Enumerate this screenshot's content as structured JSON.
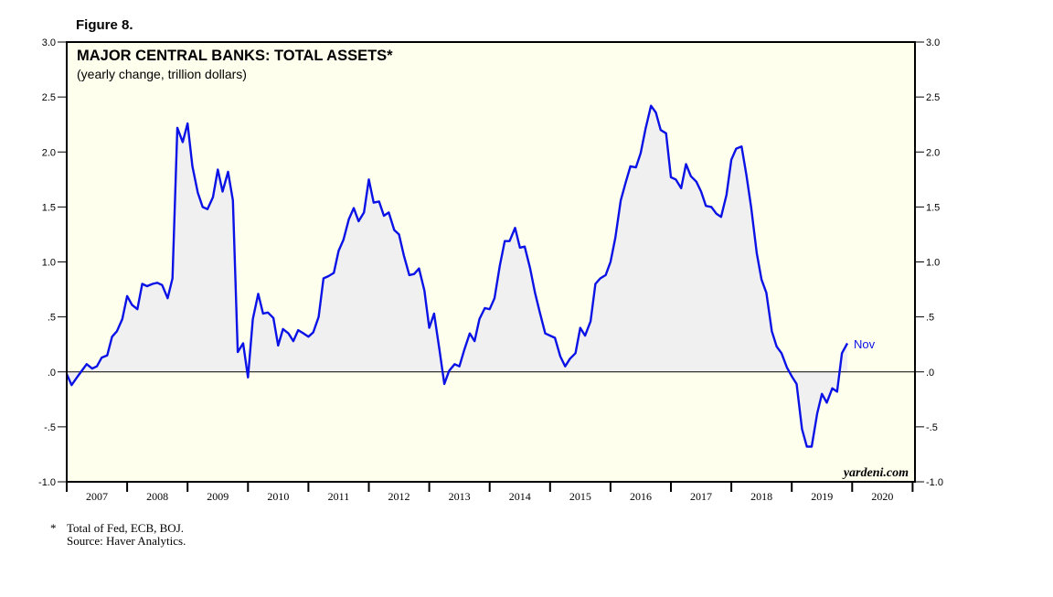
{
  "figure_label": "Figure 8.",
  "chart_data": {
    "type": "area",
    "title": "MAJOR CENTRAL BANKS: TOTAL ASSETS*",
    "subtitle": "(yearly change, trillion dollars)",
    "xlabel": "",
    "ylabel": "",
    "ylim": [
      -1.0,
      3.0
    ],
    "yticks": [
      -1.0,
      -0.5,
      0.0,
      0.5,
      1.0,
      1.5,
      2.0,
      2.5,
      3.0
    ],
    "ytick_labels_left": [
      "-1.0",
      "-.5",
      ".0",
      ".5",
      "1.0",
      "1.5",
      "2.0",
      "2.5",
      "3.0"
    ],
    "ytick_labels_right": [
      "-1.0",
      "-.5",
      ".0",
      ".5",
      "1.0",
      "1.5",
      "2.0",
      "2.5",
      "3.0"
    ],
    "xlim": [
      2007.0,
      2021.0
    ],
    "categories": [
      "2007",
      "2008",
      "2009",
      "2010",
      "2011",
      "2012",
      "2013",
      "2014",
      "2015",
      "2016",
      "2017",
      "2018",
      "2019",
      "2020"
    ],
    "grid": false,
    "zero_line": true,
    "background_color": "#ffffee",
    "series": [
      {
        "color": "#0a12e6",
        "fill": "#f0f0f0",
        "end_label": "Nov",
        "points": [
          [
            2007.0,
            -0.02
          ],
          [
            2007.08,
            -0.12
          ],
          [
            2007.17,
            -0.05
          ],
          [
            2007.25,
            0.01
          ],
          [
            2007.33,
            0.07
          ],
          [
            2007.42,
            0.03
          ],
          [
            2007.5,
            0.05
          ],
          [
            2007.58,
            0.13
          ],
          [
            2007.67,
            0.15
          ],
          [
            2007.75,
            0.32
          ],
          [
            2007.83,
            0.37
          ],
          [
            2007.92,
            0.48
          ],
          [
            2008.0,
            0.69
          ],
          [
            2008.08,
            0.61
          ],
          [
            2008.17,
            0.57
          ],
          [
            2008.25,
            0.8
          ],
          [
            2008.33,
            0.78
          ],
          [
            2008.42,
            0.8
          ],
          [
            2008.5,
            0.81
          ],
          [
            2008.58,
            0.79
          ],
          [
            2008.67,
            0.67
          ],
          [
            2008.75,
            0.85
          ],
          [
            2008.83,
            2.22
          ],
          [
            2008.92,
            2.09
          ],
          [
            2009.0,
            2.26
          ],
          [
            2009.08,
            1.87
          ],
          [
            2009.17,
            1.63
          ],
          [
            2009.25,
            1.5
          ],
          [
            2009.33,
            1.48
          ],
          [
            2009.42,
            1.59
          ],
          [
            2009.5,
            1.84
          ],
          [
            2009.58,
            1.64
          ],
          [
            2009.67,
            1.82
          ],
          [
            2009.75,
            1.56
          ],
          [
            2009.83,
            0.18
          ],
          [
            2009.92,
            0.26
          ],
          [
            2010.0,
            -0.05
          ],
          [
            2010.08,
            0.48
          ],
          [
            2010.17,
            0.71
          ],
          [
            2010.25,
            0.53
          ],
          [
            2010.33,
            0.54
          ],
          [
            2010.42,
            0.49
          ],
          [
            2010.5,
            0.24
          ],
          [
            2010.58,
            0.39
          ],
          [
            2010.67,
            0.35
          ],
          [
            2010.75,
            0.28
          ],
          [
            2010.83,
            0.38
          ],
          [
            2010.92,
            0.35
          ],
          [
            2011.0,
            0.32
          ],
          [
            2011.08,
            0.36
          ],
          [
            2011.17,
            0.5
          ],
          [
            2011.25,
            0.85
          ],
          [
            2011.33,
            0.87
          ],
          [
            2011.42,
            0.9
          ],
          [
            2011.5,
            1.1
          ],
          [
            2011.58,
            1.2
          ],
          [
            2011.67,
            1.39
          ],
          [
            2011.75,
            1.49
          ],
          [
            2011.83,
            1.37
          ],
          [
            2011.92,
            1.45
          ],
          [
            2012.0,
            1.75
          ],
          [
            2012.08,
            1.54
          ],
          [
            2012.17,
            1.55
          ],
          [
            2012.25,
            1.42
          ],
          [
            2012.33,
            1.45
          ],
          [
            2012.42,
            1.29
          ],
          [
            2012.5,
            1.25
          ],
          [
            2012.58,
            1.06
          ],
          [
            2012.67,
            0.88
          ],
          [
            2012.75,
            0.89
          ],
          [
            2012.83,
            0.94
          ],
          [
            2012.92,
            0.74
          ],
          [
            2013.0,
            0.4
          ],
          [
            2013.08,
            0.53
          ],
          [
            2013.17,
            0.2
          ],
          [
            2013.25,
            -0.11
          ],
          [
            2013.33,
            0.01
          ],
          [
            2013.42,
            0.07
          ],
          [
            2013.5,
            0.05
          ],
          [
            2013.58,
            0.2
          ],
          [
            2013.67,
            0.35
          ],
          [
            2013.75,
            0.28
          ],
          [
            2013.83,
            0.48
          ],
          [
            2013.92,
            0.58
          ],
          [
            2014.0,
            0.57
          ],
          [
            2014.08,
            0.67
          ],
          [
            2014.17,
            0.97
          ],
          [
            2014.25,
            1.19
          ],
          [
            2014.33,
            1.19
          ],
          [
            2014.42,
            1.31
          ],
          [
            2014.5,
            1.13
          ],
          [
            2014.58,
            1.14
          ],
          [
            2014.67,
            0.94
          ],
          [
            2014.75,
            0.72
          ],
          [
            2014.83,
            0.54
          ],
          [
            2014.92,
            0.35
          ],
          [
            2015.0,
            0.33
          ],
          [
            2015.08,
            0.31
          ],
          [
            2015.17,
            0.14
          ],
          [
            2015.25,
            0.05
          ],
          [
            2015.33,
            0.12
          ],
          [
            2015.42,
            0.17
          ],
          [
            2015.5,
            0.4
          ],
          [
            2015.58,
            0.33
          ],
          [
            2015.67,
            0.46
          ],
          [
            2015.75,
            0.8
          ],
          [
            2015.83,
            0.85
          ],
          [
            2015.92,
            0.88
          ],
          [
            2016.0,
            1.0
          ],
          [
            2016.08,
            1.22
          ],
          [
            2016.17,
            1.56
          ],
          [
            2016.25,
            1.72
          ],
          [
            2016.33,
            1.87
          ],
          [
            2016.42,
            1.86
          ],
          [
            2016.5,
            1.99
          ],
          [
            2016.58,
            2.21
          ],
          [
            2016.67,
            2.42
          ],
          [
            2016.75,
            2.36
          ],
          [
            2016.83,
            2.2
          ],
          [
            2016.92,
            2.17
          ],
          [
            2017.0,
            1.77
          ],
          [
            2017.08,
            1.75
          ],
          [
            2017.17,
            1.67
          ],
          [
            2017.25,
            1.89
          ],
          [
            2017.33,
            1.78
          ],
          [
            2017.42,
            1.73
          ],
          [
            2017.5,
            1.64
          ],
          [
            2017.58,
            1.51
          ],
          [
            2017.67,
            1.5
          ],
          [
            2017.75,
            1.44
          ],
          [
            2017.83,
            1.41
          ],
          [
            2017.92,
            1.61
          ],
          [
            2018.0,
            1.93
          ],
          [
            2018.08,
            2.03
          ],
          [
            2018.17,
            2.05
          ],
          [
            2018.25,
            1.79
          ],
          [
            2018.33,
            1.49
          ],
          [
            2018.42,
            1.08
          ],
          [
            2018.5,
            0.84
          ],
          [
            2018.58,
            0.72
          ],
          [
            2018.67,
            0.37
          ],
          [
            2018.75,
            0.23
          ],
          [
            2018.83,
            0.17
          ],
          [
            2018.92,
            0.04
          ],
          [
            2019.0,
            -0.04
          ],
          [
            2019.08,
            -0.11
          ],
          [
            2019.17,
            -0.52
          ],
          [
            2019.25,
            -0.68
          ],
          [
            2019.33,
            -0.68
          ],
          [
            2019.42,
            -0.38
          ],
          [
            2019.5,
            -0.2
          ],
          [
            2019.58,
            -0.28
          ],
          [
            2019.67,
            -0.15
          ],
          [
            2019.75,
            -0.18
          ],
          [
            2019.83,
            0.17
          ],
          [
            2019.92,
            0.26
          ]
        ]
      }
    ],
    "watermark": "yardeni.com"
  },
  "footnote_mark": "*",
  "footnote_text": "Total of Fed, ECB, BOJ.",
  "source_text": "Source: Haver Analytics."
}
